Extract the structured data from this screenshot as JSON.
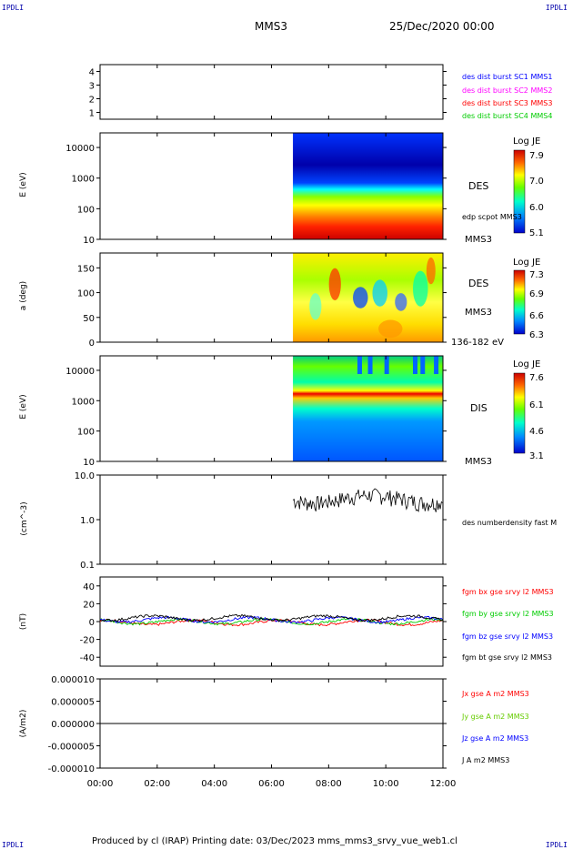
{
  "corners": {
    "tl": "IPDLI",
    "tr": "IPDLI",
    "bl": "IPDLI",
    "br": "IPDLI"
  },
  "header": {
    "spacecraft": "MMS3",
    "date": "25/Dec/2020 00:00"
  },
  "footer": {
    "text": "Produced by cl (IRAP)   Printing date: 03/Dec/2023   mms_mms3_srvy_vue_web1.cl"
  },
  "time_axis": {
    "ticks": [
      "00:00",
      "02:00",
      "04:00",
      "06:00",
      "08:00",
      "10:00",
      "12:00"
    ]
  },
  "chart_data": [
    {
      "type": "line",
      "name": "availability",
      "ylim": [
        0.5,
        4.5
      ],
      "yticks": [
        "1",
        "2",
        "3",
        "4"
      ],
      "legend": [
        {
          "text": "des dist burst SC1 MMS1",
          "color": "#0000ff"
        },
        {
          "text": "des dist burst SC2 MMS2",
          "color": "#ff00ff"
        },
        {
          "text": "des dist burst SC3 MMS3",
          "color": "#ff0000"
        },
        {
          "text": "des dist burst SC4 MMS4",
          "color": "#00cc00"
        }
      ]
    },
    {
      "type": "heatmap",
      "name": "des-energy",
      "ylabel": "E (eV)",
      "yscale": "log",
      "ylim": [
        10,
        30000
      ],
      "yticks": [
        "10000",
        "1000",
        "100",
        "10"
      ],
      "data_start_time": "06:45",
      "right_labels": [
        "DES",
        "edp scpot MMS3",
        "MMS3"
      ],
      "colorbar": {
        "title": "Log JE",
        "ticks": [
          "7.9",
          "7.0",
          "6.0",
          "5.1"
        ]
      }
    },
    {
      "type": "heatmap",
      "name": "des-pitch",
      "ylabel": "a (deg)",
      "ylim": [
        0,
        180
      ],
      "yticks": [
        "150",
        "100",
        "50",
        "0"
      ],
      "data_start_time": "06:45",
      "right_labels": [
        "DES",
        "MMS3",
        "136-182 eV"
      ],
      "colorbar": {
        "title": "Log JE",
        "ticks": [
          "7.3",
          "6.9",
          "6.6",
          "6.3"
        ]
      }
    },
    {
      "type": "heatmap",
      "name": "dis-energy",
      "ylabel": "E (eV)",
      "yscale": "log",
      "ylim": [
        10,
        30000
      ],
      "yticks": [
        "10000",
        "1000",
        "100",
        "10"
      ],
      "data_start_time": "06:45",
      "right_labels": [
        "DIS",
        "MMS3"
      ],
      "colorbar": {
        "title": "Log JE",
        "ticks": [
          "7.6",
          "6.1",
          "4.6",
          "3.1"
        ]
      }
    },
    {
      "type": "line",
      "name": "density",
      "ylabel": "(cm^-3)",
      "yscale": "log",
      "ylim": [
        0.1,
        10
      ],
      "yticks": [
        "10.0",
        "1.0",
        "0.1"
      ],
      "series": [
        {
          "name": "des numberdensity fast M",
          "color": "#000000"
        }
      ]
    },
    {
      "type": "line",
      "name": "magnetic-field",
      "ylabel": "(nT)",
      "ylim": [
        -50,
        50
      ],
      "yticks": [
        "40",
        "20",
        "0",
        "-20",
        "-40"
      ],
      "series": [
        {
          "name": "fgm bx gse srvy l2 MMS3",
          "color": "#ff0000"
        },
        {
          "name": "fgm by gse srvy l2 MMS3",
          "color": "#00cc00"
        },
        {
          "name": "fgm bz gse srvy l2 MMS3",
          "color": "#0000ff"
        },
        {
          "name": "fgm bt gse srvy l2 MMS3",
          "color": "#000000"
        }
      ]
    },
    {
      "type": "line",
      "name": "current-density",
      "ylabel": "(A/m2)",
      "ylim": [
        -1e-05,
        1e-05
      ],
      "yticks": [
        "0.000010",
        "0.000005",
        "0.000000",
        "-0.000005",
        "-0.000010"
      ],
      "series": [
        {
          "name": "Jx gse A m2 MMS3",
          "color": "#ff0000"
        },
        {
          "name": "Jy gse A m2 MMS3",
          "color": "#66cc00"
        },
        {
          "name": "Jz gse A m2 MMS3",
          "color": "#0000ff"
        },
        {
          "name": "J A m2 MMS3",
          "color": "#000000"
        }
      ]
    }
  ]
}
